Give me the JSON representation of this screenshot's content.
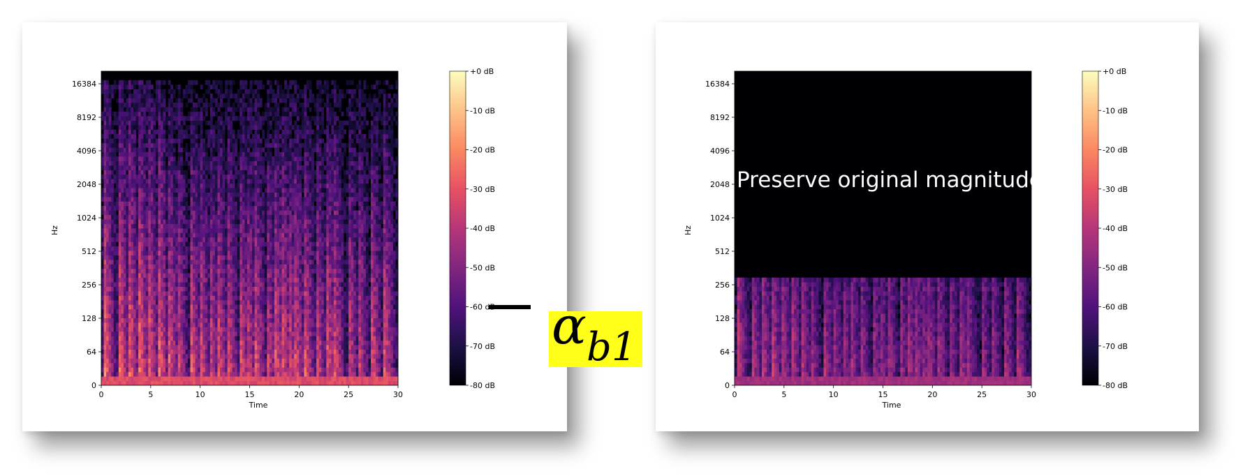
{
  "operators": {
    "minus": "−",
    "alpha": "α",
    "alpha_subscript": "b1",
    "times": "×"
  },
  "highlight_color": "#ffff1a",
  "colormap": [
    "#000004",
    "#1d1147",
    "#51127c",
    "#822681",
    "#b63679",
    "#e65164",
    "#fb8861",
    "#fec287",
    "#fcfdbf"
  ],
  "overlay_text": "Preserve original magnitude",
  "chart_data": [
    {
      "type": "heatmap",
      "xlabel": "Time",
      "ylabel": "Hz",
      "xticks": [
        "0",
        "5",
        "10",
        "15",
        "20",
        "25",
        "30"
      ],
      "xlim": [
        0,
        30
      ],
      "yticks": [
        "0",
        "64",
        "128",
        "256",
        "512",
        "1024",
        "2048",
        "4096",
        "8192",
        "16384"
      ],
      "y_scale": "log2",
      "colorbar_ticks": [
        "+0 dB",
        "-10 dB",
        "-20 dB",
        "-30 dB",
        "-40 dB",
        "-50 dB",
        "-60 dB",
        "-70 dB",
        "-80 dB"
      ],
      "colorbar_range": [
        -80,
        0
      ]
    },
    {
      "type": "heatmap",
      "xlabel": "Time",
      "ylabel": "Hz",
      "xticks": [
        "0",
        "5",
        "10",
        "15",
        "20",
        "25",
        "30"
      ],
      "xlim": [
        0,
        30
      ],
      "yticks": [
        "0",
        "64",
        "128",
        "256",
        "512",
        "1024",
        "2048",
        "4096",
        "8192",
        "16384"
      ],
      "y_scale": "log2",
      "masked_above_hz": 256,
      "annotation": "Preserve original magnitude",
      "colorbar_ticks": [
        "+0 dB",
        "-10 dB",
        "-20 dB",
        "-30 dB",
        "-40 dB",
        "-50 dB",
        "-60 dB",
        "-70 dB",
        "-80 dB"
      ],
      "colorbar_range": [
        -80,
        0
      ]
    }
  ]
}
